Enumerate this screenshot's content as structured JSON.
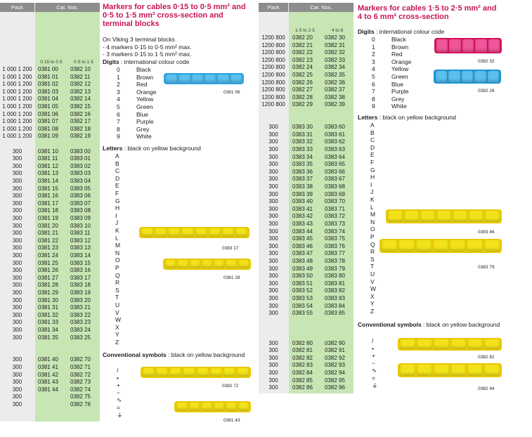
{
  "left": {
    "header": {
      "pack": "Pack",
      "cat": "Cat. Nos.",
      "sub1": "0·15 to 0·5",
      "sub2": "0·5 to 1·5"
    },
    "rows": [
      {
        "pack": "1 000 1 200",
        "a": "0381 00",
        "b": "0382 10"
      },
      {
        "pack": "1 000 1 200",
        "a": "0381 01",
        "b": "0382 11"
      },
      {
        "pack": "1 000 1 200",
        "a": "0381 02",
        "b": "0382 12"
      },
      {
        "pack": "1 000 1 200",
        "a": "0381 03",
        "b": "0382 13"
      },
      {
        "pack": "1 000 1 200",
        "a": "0381 04",
        "b": "0382 14"
      },
      {
        "pack": "1 000 1 200",
        "a": "0381 05",
        "b": "0382 15"
      },
      {
        "pack": "1 000 1 200",
        "a": "0381 06",
        "b": "0382 16"
      },
      {
        "pack": "1 000 1 200",
        "a": "0381 07",
        "b": "0382 17"
      },
      {
        "pack": "1 000 1 200",
        "a": "0381 08",
        "b": "0382 18"
      },
      {
        "pack": "1 000 1 200",
        "a": "0381 09",
        "b": "0382 19"
      },
      {
        "pack": "",
        "a": "",
        "b": ""
      },
      {
        "pack": "300",
        "a": "0381 10",
        "b": "0383 00"
      },
      {
        "pack": "300",
        "a": "0381 11",
        "b": "0383 01"
      },
      {
        "pack": "300",
        "a": "0381 12",
        "b": "0383 02"
      },
      {
        "pack": "300",
        "a": "0381 13",
        "b": "0383 03"
      },
      {
        "pack": "300",
        "a": "0381 14",
        "b": "0383 04"
      },
      {
        "pack": "300",
        "a": "0381 15",
        "b": "0383 05"
      },
      {
        "pack": "300",
        "a": "0381 16",
        "b": "0383 06"
      },
      {
        "pack": "300",
        "a": "0381 17",
        "b": "0383 07"
      },
      {
        "pack": "300",
        "a": "0381 18",
        "b": "0383 08"
      },
      {
        "pack": "300",
        "a": "0381 19",
        "b": "0383 09"
      },
      {
        "pack": "300",
        "a": "0381 20",
        "b": "0383 10"
      },
      {
        "pack": "300",
        "a": "0381 21",
        "b": "0383 11"
      },
      {
        "pack": "300",
        "a": "0381 22",
        "b": "0383 12"
      },
      {
        "pack": "300",
        "a": "0381 23",
        "b": "0383 13"
      },
      {
        "pack": "300",
        "a": "0381 24",
        "b": "0383 14"
      },
      {
        "pack": "300",
        "a": "0381 25",
        "b": "0383 15"
      },
      {
        "pack": "300",
        "a": "0381 26",
        "b": "0383 16"
      },
      {
        "pack": "300",
        "a": "0381 27",
        "b": "0383 17"
      },
      {
        "pack": "300",
        "a": "0381 28",
        "b": "0383 18"
      },
      {
        "pack": "300",
        "a": "0381 29",
        "b": "0383 19"
      },
      {
        "pack": "300",
        "a": "0381 30",
        "b": "0383 20"
      },
      {
        "pack": "300",
        "a": "0381 31",
        "b": "0383 21"
      },
      {
        "pack": "300",
        "a": "0381 32",
        "b": "0383 22"
      },
      {
        "pack": "300",
        "a": "0381 33",
        "b": "0383 23"
      },
      {
        "pack": "300",
        "a": "0381 34",
        "b": "0383 24"
      },
      {
        "pack": "300",
        "a": "0381 35",
        "b": "0383 25"
      },
      {
        "pack": "",
        "a": "",
        "b": ""
      },
      {
        "pack": "",
        "a": "",
        "b": ""
      },
      {
        "pack": "300",
        "a": "0381 40",
        "b": "0382 70"
      },
      {
        "pack": "300",
        "a": "0381 41",
        "b": "0382 71"
      },
      {
        "pack": "300",
        "a": "0381 42",
        "b": "0382 72"
      },
      {
        "pack": "300",
        "a": "0381 43",
        "b": "0382 73"
      },
      {
        "pack": "300",
        "a": "0381 44",
        "b": "0382 74"
      },
      {
        "pack": "300",
        "a": "",
        "b": "0382 75"
      },
      {
        "pack": "300",
        "a": "",
        "b": "0382 76"
      }
    ],
    "title": "Markers for cables 0·15 to 0·5 mm² and 0·5 to 1·5 mm² cross-section and terminal blocks",
    "intro": [
      "On Viking 3 terminal blocks",
      "- 4 markers 0·15 to 0·5 mm² max.",
      "- 3 markers 0·15 to 1·5 mm² max."
    ],
    "digits_heading": "Digits",
    "digits_text": " : international colour code",
    "digits": [
      [
        "0",
        "Black"
      ],
      [
        "1",
        "Brown"
      ],
      [
        "2",
        "Red"
      ],
      [
        "3",
        "Orange"
      ],
      [
        "4",
        "Yellow"
      ],
      [
        "5",
        "Green"
      ],
      [
        "6",
        "Blue"
      ],
      [
        "7",
        "Purple"
      ],
      [
        "8",
        "Grey"
      ],
      [
        "9",
        "White"
      ]
    ],
    "letters_heading": "Letters",
    "letters_text": " : black on yellow background",
    "letters": [
      "A",
      "B",
      "C",
      "D",
      "E",
      "F",
      "G",
      "H",
      "I",
      "J",
      "K",
      "L",
      "M",
      "N",
      "O",
      "P",
      "Q",
      "R",
      "S",
      "T",
      "U",
      "V",
      "W",
      "X",
      "Y",
      "Z"
    ],
    "symbols_heading": "Conventional symbols",
    "symbols_text": " : black on yellow background",
    "symbols": [
      "/",
      "•",
      "+",
      "−",
      "∿",
      "=",
      "⏚"
    ],
    "refs": [
      "0381 06",
      "0383 17",
      "0381 28",
      "0382 72",
      "0381 43"
    ]
  },
  "right": {
    "header": {
      "pack": "Pack",
      "cat": "Cat. Nos.",
      "sub1": "1·5 to 2·5",
      "sub2": "4 to 6"
    },
    "rows": [
      {
        "pack": "1200 800",
        "a": "0382 20",
        "b": "0382 30"
      },
      {
        "pack": "1200 800",
        "a": "0382 21",
        "b": "0382 31"
      },
      {
        "pack": "1200 800",
        "a": "0382 22",
        "b": "0382 32"
      },
      {
        "pack": "1200 800",
        "a": "0382 23",
        "b": "0382 33"
      },
      {
        "pack": "1200 800",
        "a": "0382 24",
        "b": "0382 34"
      },
      {
        "pack": "1200 800",
        "a": "0382 25",
        "b": "0382 35"
      },
      {
        "pack": "1200 800",
        "a": "0382 26",
        "b": "0382 36"
      },
      {
        "pack": "1200 800",
        "a": "0382 27",
        "b": "0382 37"
      },
      {
        "pack": "1200 800",
        "a": "0382 28",
        "b": "0382 38"
      },
      {
        "pack": "1200 800",
        "a": "0382 29",
        "b": "0382 39"
      },
      {
        "pack": "",
        "a": "",
        "b": ""
      },
      {
        "pack": "",
        "a": "",
        "b": ""
      },
      {
        "pack": "300",
        "a": "0383 30",
        "b": "0383 60"
      },
      {
        "pack": "300",
        "a": "0383 31",
        "b": "0383 61"
      },
      {
        "pack": "300",
        "a": "0383 32",
        "b": "0383 62"
      },
      {
        "pack": "300",
        "a": "0383 33",
        "b": "0383 63"
      },
      {
        "pack": "300",
        "a": "0383 34",
        "b": "0383 64"
      },
      {
        "pack": "300",
        "a": "0383 35",
        "b": "0383 65"
      },
      {
        "pack": "300",
        "a": "0383 36",
        "b": "0383 66"
      },
      {
        "pack": "300",
        "a": "0383 37",
        "b": "0383 67"
      },
      {
        "pack": "300",
        "a": "0383 38",
        "b": "0383 68"
      },
      {
        "pack": "300",
        "a": "0383 39",
        "b": "0383 69"
      },
      {
        "pack": "300",
        "a": "0383 40",
        "b": "0383 70"
      },
      {
        "pack": "300",
        "a": "0383 41",
        "b": "0383 71"
      },
      {
        "pack": "300",
        "a": "0383 42",
        "b": "0383 72"
      },
      {
        "pack": "300",
        "a": "0383 43",
        "b": "0383 73"
      },
      {
        "pack": "300",
        "a": "0383 44",
        "b": "0383 74"
      },
      {
        "pack": "300",
        "a": "0383 45",
        "b": "0383 75"
      },
      {
        "pack": "300",
        "a": "0383 46",
        "b": "0383 76"
      },
      {
        "pack": "300",
        "a": "0383 47",
        "b": "0383 77"
      },
      {
        "pack": "300",
        "a": "0383 48",
        "b": "0383 78"
      },
      {
        "pack": "300",
        "a": "0383 49",
        "b": "0383 79"
      },
      {
        "pack": "300",
        "a": "0383 50",
        "b": "0383 80"
      },
      {
        "pack": "300",
        "a": "0383 51",
        "b": "0383 81"
      },
      {
        "pack": "300",
        "a": "0383 52",
        "b": "0383 82"
      },
      {
        "pack": "300",
        "a": "0383 53",
        "b": "0383 83"
      },
      {
        "pack": "300",
        "a": "0383 54",
        "b": "0383 84"
      },
      {
        "pack": "300",
        "a": "0383 55",
        "b": "0383 85"
      },
      {
        "pack": "",
        "a": "",
        "b": ""
      },
      {
        "pack": "",
        "a": "",
        "b": ""
      },
      {
        "pack": "",
        "a": "",
        "b": ""
      },
      {
        "pack": "300",
        "a": "0382 80",
        "b": "0382 90"
      },
      {
        "pack": "300",
        "a": "0382 81",
        "b": "0382 91"
      },
      {
        "pack": "300",
        "a": "0382 82",
        "b": "0382 92"
      },
      {
        "pack": "300",
        "a": "0382 83",
        "b": "0382 93"
      },
      {
        "pack": "300",
        "a": "0382 84",
        "b": "0382 94"
      },
      {
        "pack": "300",
        "a": "0382 85",
        "b": "0382 95"
      },
      {
        "pack": "300",
        "a": "0382 86",
        "b": "0382 96"
      }
    ],
    "title": "Markers for cables 1·5 to 2·5 mm² and 4 to 6 mm² cross-section",
    "digits_heading": "Digits",
    "digits_text": " : international colour code",
    "digits": [
      [
        "0",
        "Black"
      ],
      [
        "1",
        "Brown"
      ],
      [
        "2",
        "Red"
      ],
      [
        "3",
        "Orange"
      ],
      [
        "4",
        "Yellow"
      ],
      [
        "5",
        "Green"
      ],
      [
        "6",
        "Blue"
      ],
      [
        "7",
        "Purple"
      ],
      [
        "8",
        "Grey"
      ],
      [
        "9",
        "White"
      ]
    ],
    "letters_heading": "Letters",
    "letters_text": " : black on yellow background",
    "letters": [
      "A",
      "B",
      "C",
      "D",
      "E",
      "F",
      "G",
      "H",
      "I",
      "J",
      "K",
      "L",
      "M",
      "N",
      "O",
      "P",
      "Q",
      "R",
      "S",
      "T",
      "U",
      "V",
      "W",
      "X",
      "Y",
      "Z"
    ],
    "symbols_heading": "Conventional symbols",
    "symbols_text": " : black on yellow background",
    "symbols": [
      "/",
      "•",
      "+",
      "−",
      "∿",
      "=",
      "⏚"
    ],
    "refs": [
      "0382 32",
      "0382 26",
      "0383 46",
      "0383 79",
      "0382 82",
      "0382 94"
    ]
  },
  "colors": {
    "title": "#c8145a",
    "green_col": "#c8e6b4",
    "grey_col": "#ececec",
    "header": "#8d8d8d",
    "marker_yellow": "#f2e21a",
    "marker_red": "#e8206e",
    "marker_blue": "#2aa6e0"
  }
}
